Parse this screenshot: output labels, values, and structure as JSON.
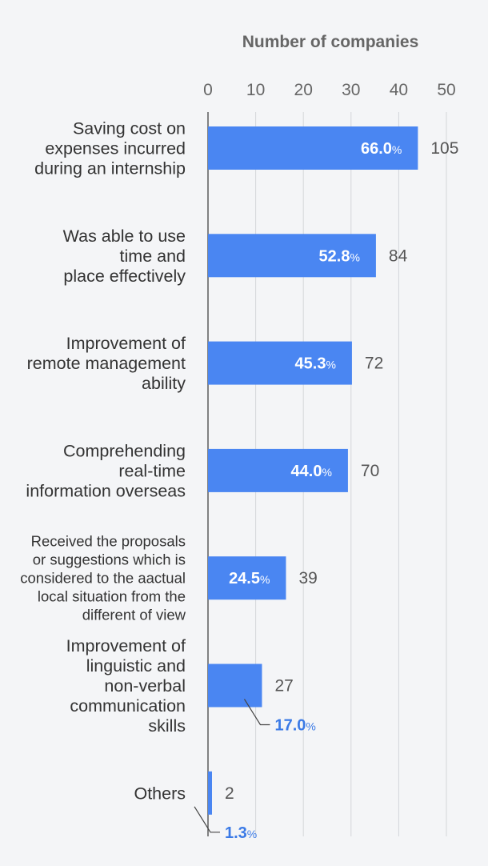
{
  "chart_data": {
    "type": "bar",
    "orientation": "horizontal",
    "title": "Number of companies",
    "xlim": [
      0,
      50
    ],
    "ticks": [
      0,
      10,
      20,
      30,
      40,
      50
    ],
    "grid": true,
    "categories": [
      [
        "Saving cost on",
        "expenses incurred",
        "during an internship"
      ],
      [
        "Was able to use",
        "time and",
        "place effectively"
      ],
      [
        "Improvement of",
        "remote management",
        "ability"
      ],
      [
        "Comprehending",
        "real-time",
        "information overseas"
      ],
      [
        "Received the proposals",
        "or suggestions which is",
        "considered to the aactual",
        "local situation from the",
        "different of view"
      ],
      [
        "Improvement of",
        "linguistic and",
        "non-verbal",
        "communication",
        "skills"
      ],
      [
        "Others"
      ]
    ],
    "percent_values": [
      66.0,
      52.8,
      45.3,
      44.0,
      24.5,
      17.0,
      1.3
    ],
    "count_labels": [
      "105",
      "84",
      "72",
      "70",
      "39",
      "27",
      "2"
    ],
    "percent_labels": [
      "66.0",
      "52.8",
      "45.3",
      "44.0",
      "24.5",
      "17.0",
      "1.3"
    ],
    "percent_unit": "%",
    "colors": {
      "bar": "#4a86f2",
      "label_inside": "#ffffff",
      "label_outside": "#3b7ae6",
      "count": "#555555",
      "category": "#333333",
      "title": "#666666",
      "grid": "#d4d6da",
      "axis": "#444444"
    }
  }
}
